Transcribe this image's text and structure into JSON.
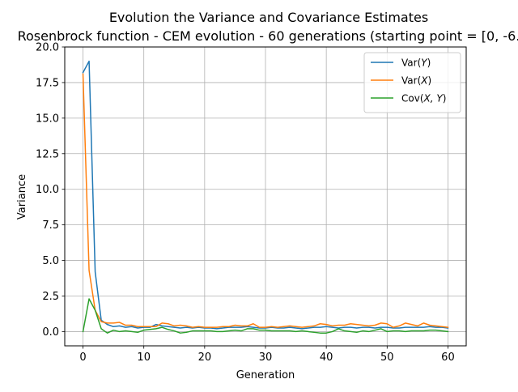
{
  "chart_data": {
    "type": "line",
    "title": "Evolution the Variance and Covariance Estimates",
    "subtitle": "Rosenbrock function - CEM evolution - 60 generations (starting point = [0, -6.",
    "xlabel": "Generation",
    "ylabel": "Variance",
    "xlim": [
      -3,
      63
    ],
    "ylim": [
      -1.0,
      20.0
    ],
    "xticks": [
      0,
      10,
      20,
      30,
      40,
      50,
      60
    ],
    "yticks": [
      0.0,
      2.5,
      5.0,
      7.5,
      10.0,
      12.5,
      15.0,
      17.5,
      20.0
    ],
    "xtick_labels": [
      "0",
      "10",
      "20",
      "30",
      "40",
      "50",
      "60"
    ],
    "ytick_labels": [
      "0.0",
      "2.5",
      "5.0",
      "7.5",
      "10.0",
      "12.5",
      "15.0",
      "17.5",
      "20.0"
    ],
    "grid": true,
    "legend_position": "top-right",
    "x": [
      0,
      1,
      2,
      3,
      4,
      5,
      6,
      7,
      8,
      9,
      10,
      11,
      12,
      13,
      14,
      15,
      16,
      17,
      18,
      19,
      20,
      21,
      22,
      23,
      24,
      25,
      26,
      27,
      28,
      29,
      30,
      31,
      32,
      33,
      34,
      35,
      36,
      37,
      38,
      39,
      40,
      41,
      42,
      43,
      44,
      45,
      46,
      47,
      48,
      49,
      50,
      51,
      52,
      53,
      54,
      55,
      56,
      57,
      58,
      59,
      60
    ],
    "series": [
      {
        "name": "Var(Y)",
        "legend_base": "Var(",
        "legend_var": "Y",
        "legend_close": ")",
        "color": "#1f77b4",
        "values": [
          18.2,
          19.0,
          4.2,
          0.8,
          0.5,
          0.35,
          0.4,
          0.3,
          0.35,
          0.25,
          0.3,
          0.3,
          0.5,
          0.4,
          0.35,
          0.3,
          0.25,
          0.3,
          0.25,
          0.3,
          0.25,
          0.25,
          0.2,
          0.25,
          0.3,
          0.3,
          0.3,
          0.35,
          0.3,
          0.25,
          0.25,
          0.3,
          0.25,
          0.25,
          0.3,
          0.25,
          0.2,
          0.25,
          0.3,
          0.3,
          0.35,
          0.3,
          0.25,
          0.3,
          0.3,
          0.25,
          0.3,
          0.3,
          0.25,
          0.3,
          0.3,
          0.25,
          0.25,
          0.3,
          0.3,
          0.3,
          0.3,
          0.35,
          0.3,
          0.3,
          0.25
        ]
      },
      {
        "name": "Var(X)",
        "legend_base": "Var(",
        "legend_var": "X",
        "legend_close": ")",
        "color": "#ff7f0e",
        "values": [
          18.1,
          4.3,
          1.5,
          0.7,
          0.6,
          0.6,
          0.65,
          0.45,
          0.45,
          0.35,
          0.35,
          0.35,
          0.35,
          0.6,
          0.55,
          0.4,
          0.45,
          0.4,
          0.3,
          0.35,
          0.3,
          0.3,
          0.3,
          0.35,
          0.35,
          0.45,
          0.4,
          0.4,
          0.55,
          0.3,
          0.3,
          0.35,
          0.3,
          0.35,
          0.4,
          0.35,
          0.3,
          0.35,
          0.4,
          0.55,
          0.5,
          0.4,
          0.45,
          0.45,
          0.55,
          0.5,
          0.45,
          0.4,
          0.45,
          0.6,
          0.55,
          0.3,
          0.4,
          0.6,
          0.5,
          0.4,
          0.6,
          0.45,
          0.4,
          0.35,
          0.3
        ]
      },
      {
        "name": "Cov(X,Y)",
        "legend_base": "Cov(",
        "legend_var": "X, Y",
        "legend_close": ")",
        "color": "#2ca02c",
        "values": [
          0.0,
          2.3,
          1.5,
          0.2,
          -0.1,
          0.1,
          0.0,
          0.05,
          0.0,
          -0.05,
          0.1,
          0.15,
          0.2,
          0.3,
          0.15,
          0.05,
          -0.1,
          -0.05,
          0.05,
          0.05,
          0.05,
          0.05,
          0.0,
          0.0,
          0.05,
          0.1,
          0.05,
          0.2,
          0.2,
          0.1,
          0.1,
          0.05,
          0.05,
          0.05,
          0.05,
          0.0,
          0.05,
          0.0,
          -0.05,
          -0.1,
          -0.1,
          0.0,
          0.2,
          0.05,
          0.0,
          -0.05,
          0.05,
          0.0,
          0.1,
          0.2,
          0.0,
          0.05,
          0.05,
          0.0,
          0.05,
          0.05,
          0.05,
          0.1,
          0.1,
          0.05,
          0.0
        ]
      }
    ]
  }
}
